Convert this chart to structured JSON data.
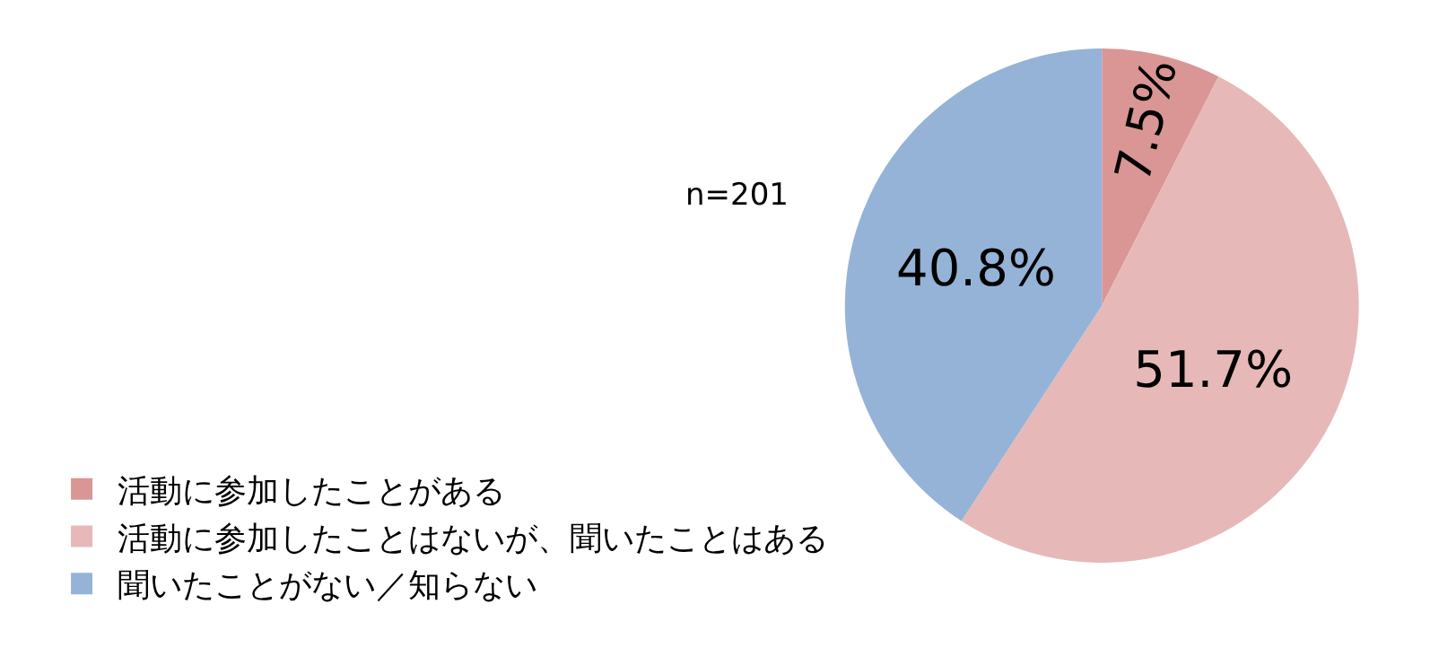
{
  "chart_data": {
    "type": "pie",
    "categories": [
      "活動に参加したことがある",
      "活動に参加したことはないが、聞いたことはある",
      "聞いたことがない／知らない"
    ],
    "values": [
      7.5,
      51.7,
      40.8
    ],
    "value_labels": [
      "7.5%",
      "51.7%",
      "40.8%"
    ],
    "colors": [
      "#d99694",
      "#e6b9b8",
      "#95b3d7"
    ],
    "annotations": [
      "n=201"
    ],
    "legend": "bottom left"
  }
}
